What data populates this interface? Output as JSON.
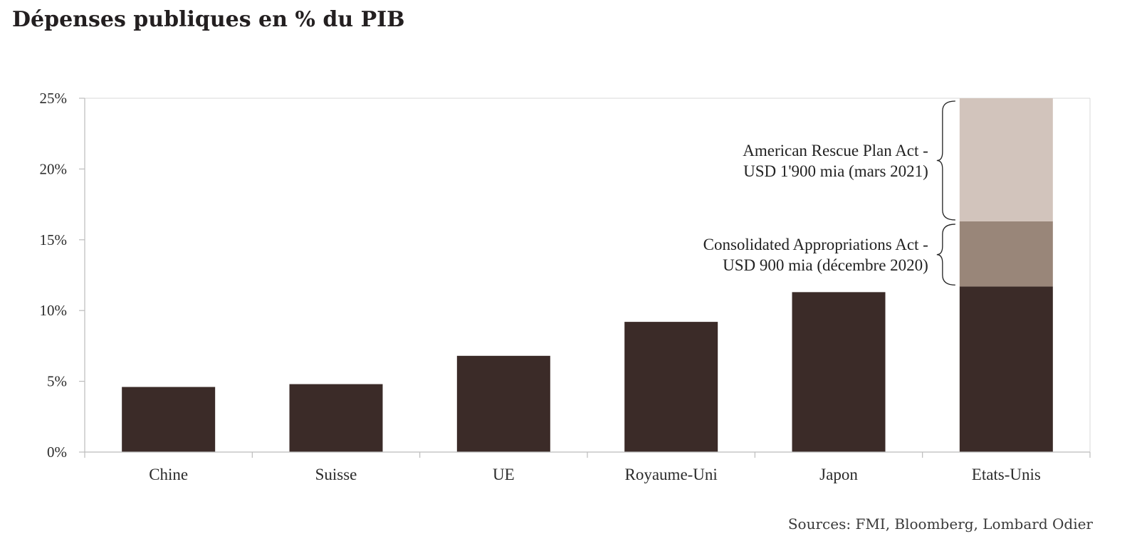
{
  "title": "Dépenses publiques en % du PIB",
  "source": "Sources: FMI, Bloomberg, Lombard Odier",
  "colors": {
    "base": "#3b2b28",
    "consolidated": "#998679",
    "rescue": "#d2c4bc",
    "axis": "#bcbcbc",
    "text": "#2b2b2b"
  },
  "chart_data": {
    "type": "bar",
    "categories": [
      "Chine",
      "Suisse",
      "UE",
      "Royaume-Uni",
      "Japon",
      "Etats-Unis"
    ],
    "series": [
      {
        "values": [
          4.6,
          4.8,
          6.8,
          9.2,
          11.3,
          11.7
        ]
      },
      {
        "values": [
          0,
          0,
          0,
          0,
          0,
          4.6
        ]
      },
      {
        "values": [
          0,
          0,
          0,
          0,
          0,
          8.7
        ]
      }
    ],
    "stacked": true,
    "ylim": [
      0,
      25
    ],
    "yticks": [
      0,
      5,
      10,
      15,
      20,
      25
    ],
    "ytick_labels": [
      "0%",
      "5%",
      "10%",
      "15%",
      "20%",
      "25%"
    ],
    "grid": false,
    "annotations": [
      {
        "lines": [
          "American Rescue Plan Act -",
          "USD 1'900 mia (mars 2021)"
        ],
        "series_index": 2,
        "category": "Etats-Unis"
      },
      {
        "lines": [
          "Consolidated Appropriations Act -",
          "USD 900 mia (décembre 2020)"
        ],
        "series_index": 1,
        "category": "Etats-Unis"
      }
    ]
  }
}
